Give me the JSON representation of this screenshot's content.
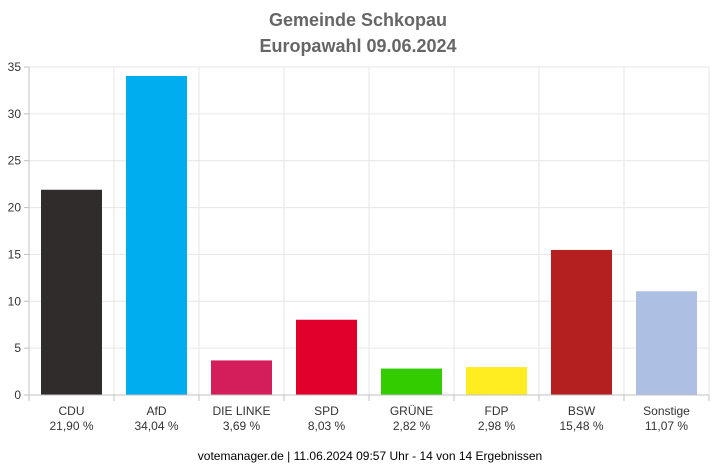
{
  "chart_data": {
    "type": "bar",
    "title": "Gemeinde Schkopau",
    "subtitle": "Europawahl 09.06.2024",
    "categories": [
      "CDU",
      "AfD",
      "DIE LINKE",
      "SPD",
      "GRÜNE",
      "FDP",
      "BSW",
      "Sonstige"
    ],
    "values": [
      21.9,
      34.04,
      3.69,
      8.03,
      2.82,
      2.98,
      15.48,
      11.07
    ],
    "value_labels": [
      "21,90 %",
      "34,04 %",
      "3,69 %",
      "8,03 %",
      "2,82 %",
      "2,98 %",
      "15,48 %",
      "11,07 %"
    ],
    "colors": [
      "#2f2c2b",
      "#00adef",
      "#d41e5b",
      "#e0002b",
      "#33cc00",
      "#ffed21",
      "#b3201f",
      "#aebfe4"
    ],
    "ylim": [
      0,
      35
    ],
    "yticks": [
      "0",
      "5",
      "10",
      "15",
      "20",
      "25",
      "30",
      "35"
    ],
    "grid": true,
    "xlabel": "",
    "ylabel": "",
    "footer": "votemanager.de | 11.06.2024 09:57 Uhr - 14 von 14 Ergebnissen"
  }
}
